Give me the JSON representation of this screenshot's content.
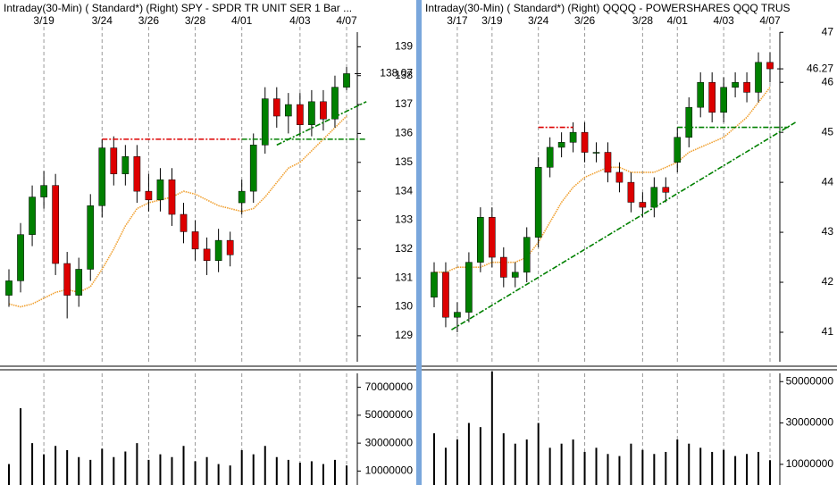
{
  "chart_data": [
    {
      "type": "candlestick",
      "title": "Intraday(30-Min) ( Standard*)  (Right)  SPY - SPDR TR UNIT SER 1  Bar ...",
      "categories": [
        null,
        null,
        null,
        "3/19",
        null,
        null,
        null,
        null,
        "3/24",
        null,
        null,
        null,
        "3/26",
        null,
        null,
        null,
        "3/28",
        null,
        null,
        null,
        "4/01",
        null,
        null,
        null,
        null,
        "4/03",
        null,
        null,
        null,
        "4/07"
      ],
      "open": [
        130.4,
        130.9,
        132.5,
        133.8,
        134.2,
        131.5,
        130.4,
        131.3,
        133.5,
        135.5,
        134.6,
        135.2,
        134.0,
        133.7,
        134.4,
        133.2,
        132.6,
        132.0,
        131.6,
        132.3,
        133.6,
        134.0,
        135.6,
        137.2,
        136.6,
        137.0,
        136.3,
        137.1,
        136.5,
        137.6
      ],
      "high": [
        131.3,
        132.9,
        134.2,
        134.7,
        134.6,
        131.9,
        131.7,
        133.9,
        135.8,
        135.9,
        135.6,
        135.6,
        134.6,
        134.8,
        134.8,
        133.6,
        133.0,
        132.4,
        132.7,
        132.6,
        134.4,
        136.0,
        137.6,
        137.6,
        137.4,
        137.4,
        137.5,
        137.5,
        138.0,
        138.3
      ],
      "low": [
        130.0,
        130.5,
        132.1,
        133.4,
        131.1,
        129.6,
        130.0,
        130.9,
        133.1,
        134.2,
        134.2,
        133.6,
        133.3,
        133.3,
        132.8,
        132.2,
        131.6,
        131.1,
        131.2,
        131.4,
        133.2,
        133.6,
        135.3,
        136.2,
        136.0,
        135.9,
        135.9,
        136.1,
        136.2,
        137.5
      ],
      "close": [
        130.9,
        132.5,
        133.8,
        134.2,
        131.5,
        130.4,
        131.3,
        133.5,
        135.5,
        134.6,
        135.2,
        134.0,
        133.7,
        134.4,
        133.2,
        132.6,
        132.0,
        131.6,
        132.3,
        131.8,
        134.0,
        135.6,
        137.2,
        136.6,
        137.0,
        136.3,
        137.1,
        136.5,
        137.6,
        138.07
      ],
      "up_color": "#008000",
      "down_color": "#dd0000",
      "ylim": [
        128.1,
        140.0
      ],
      "yticks": [
        129,
        130,
        131,
        132,
        133,
        134,
        135,
        136,
        137,
        138,
        139
      ],
      "grid": true,
      "moving_average": {
        "color": "#f0a030",
        "values": [
          130.1,
          130.0,
          130.1,
          130.3,
          130.5,
          130.6,
          130.5,
          130.7,
          131.3,
          132.0,
          132.8,
          133.4,
          133.6,
          133.7,
          133.8,
          134.0,
          133.9,
          133.7,
          133.5,
          133.4,
          133.3,
          133.4,
          133.8,
          134.3,
          134.8,
          135.0,
          135.4,
          135.8,
          136.2,
          136.6
        ]
      },
      "trendlines": [
        {
          "color": "#dd0000",
          "start": [
            8,
            135.8
          ],
          "end": [
            20,
            135.8
          ]
        },
        {
          "color": "#008000",
          "start": [
            20,
            135.8
          ],
          "end": [
            30.7,
            135.8
          ]
        },
        {
          "color": "#008000",
          "start": [
            23,
            135.6
          ],
          "end": [
            30.7,
            137.1
          ]
        }
      ],
      "volume": {
        "color": "#000000",
        "values": [
          15000000,
          55000000,
          30000000,
          22000000,
          28000000,
          25000000,
          20000000,
          18000000,
          26000000,
          20000000,
          24000000,
          30000000,
          18000000,
          22000000,
          20000000,
          28000000,
          17000000,
          20000000,
          15000000,
          14000000,
          25000000,
          22000000,
          28000000,
          20000000,
          18000000,
          16000000,
          17000000,
          15000000,
          18000000,
          14000000
        ],
        "ylim": [
          0,
          80000000
        ],
        "yticks": [
          10000000,
          30000000,
          50000000,
          70000000
        ]
      }
    },
    {
      "type": "candlestick",
      "title": "Intraday(30-Min) ( Standard*)  (Right)  QQQQ - POWERSHARES QQQ TRUS",
      "categories": [
        null,
        null,
        "3/17",
        null,
        null,
        "3/19",
        null,
        null,
        null,
        "3/24",
        null,
        null,
        null,
        "3/26",
        null,
        null,
        null,
        null,
        "3/28",
        null,
        null,
        "4/01",
        null,
        null,
        null,
        "4/03",
        null,
        null,
        null,
        "4/07"
      ],
      "open": [
        41.7,
        42.2,
        41.3,
        41.4,
        42.4,
        43.3,
        42.5,
        42.1,
        42.2,
        42.9,
        44.3,
        44.7,
        44.8,
        45.0,
        44.6,
        44.6,
        44.2,
        44.0,
        43.6,
        43.5,
        43.9,
        44.4,
        44.9,
        45.5,
        46.0,
        45.4,
        45.9,
        46.0,
        45.8,
        46.4
      ],
      "high": [
        42.4,
        42.4,
        41.6,
        42.6,
        43.5,
        43.5,
        42.7,
        42.4,
        43.1,
        44.5,
        44.9,
        45.0,
        45.2,
        45.2,
        44.8,
        44.8,
        44.4,
        44.2,
        43.8,
        44.1,
        44.1,
        45.1,
        45.7,
        46.2,
        46.2,
        46.1,
        46.2,
        46.2,
        46.6,
        46.6
      ],
      "low": [
        41.5,
        41.1,
        41.0,
        41.2,
        42.2,
        42.3,
        41.9,
        41.9,
        42.0,
        42.7,
        44.1,
        44.5,
        44.6,
        44.4,
        44.4,
        44.0,
        43.8,
        43.4,
        43.3,
        43.3,
        43.6,
        44.2,
        44.7,
        45.3,
        45.2,
        45.2,
        45.7,
        45.6,
        45.6,
        46.0
      ],
      "close": [
        42.2,
        41.3,
        41.4,
        42.4,
        43.3,
        42.5,
        42.1,
        42.2,
        42.9,
        44.3,
        44.7,
        44.8,
        45.0,
        44.6,
        44.6,
        44.2,
        44.0,
        43.6,
        43.5,
        43.9,
        43.8,
        44.9,
        45.5,
        46.0,
        45.4,
        45.9,
        46.0,
        45.8,
        46.4,
        46.27
      ],
      "up_color": "#008000",
      "down_color": "#dd0000",
      "ylim": [
        40.41,
        47.29
      ],
      "yticks": [
        41,
        42,
        43,
        44,
        45,
        46,
        47
      ],
      "grid": true,
      "moving_average": {
        "color": "#f0a030",
        "values": [
          42.2,
          42.2,
          42.3,
          42.3,
          42.3,
          42.4,
          42.4,
          42.4,
          42.5,
          42.8,
          43.2,
          43.6,
          43.9,
          44.1,
          44.2,
          44.3,
          44.3,
          44.2,
          44.2,
          44.2,
          44.3,
          44.4,
          44.6,
          44.7,
          44.8,
          44.9,
          45.1,
          45.3,
          45.6,
          45.9
        ]
      },
      "trendlines": [
        {
          "color": "#dd0000",
          "start": [
            9,
            45.1
          ],
          "end": [
            12,
            45.1
          ]
        },
        {
          "color": "#008000",
          "start": [
            21,
            45.1
          ],
          "end": [
            30.6,
            45.1
          ]
        },
        {
          "color": "#008000",
          "start": [
            1.5,
            41.05
          ],
          "end": [
            31.2,
            45.2
          ]
        }
      ],
      "volume": {
        "color": "#000000",
        "values": [
          25000000,
          18000000,
          22000000,
          30000000,
          28000000,
          55000000,
          25000000,
          20000000,
          22000000,
          30000000,
          18000000,
          20000000,
          22000000,
          16000000,
          18000000,
          15000000,
          14000000,
          20000000,
          17000000,
          15000000,
          16000000,
          22000000,
          20000000,
          18000000,
          16000000,
          17000000,
          14000000,
          15000000,
          16000000,
          12000000
        ],
        "ylim": [
          0,
          54000000
        ],
        "yticks": [
          10000000,
          30000000,
          50000000
        ]
      }
    }
  ]
}
